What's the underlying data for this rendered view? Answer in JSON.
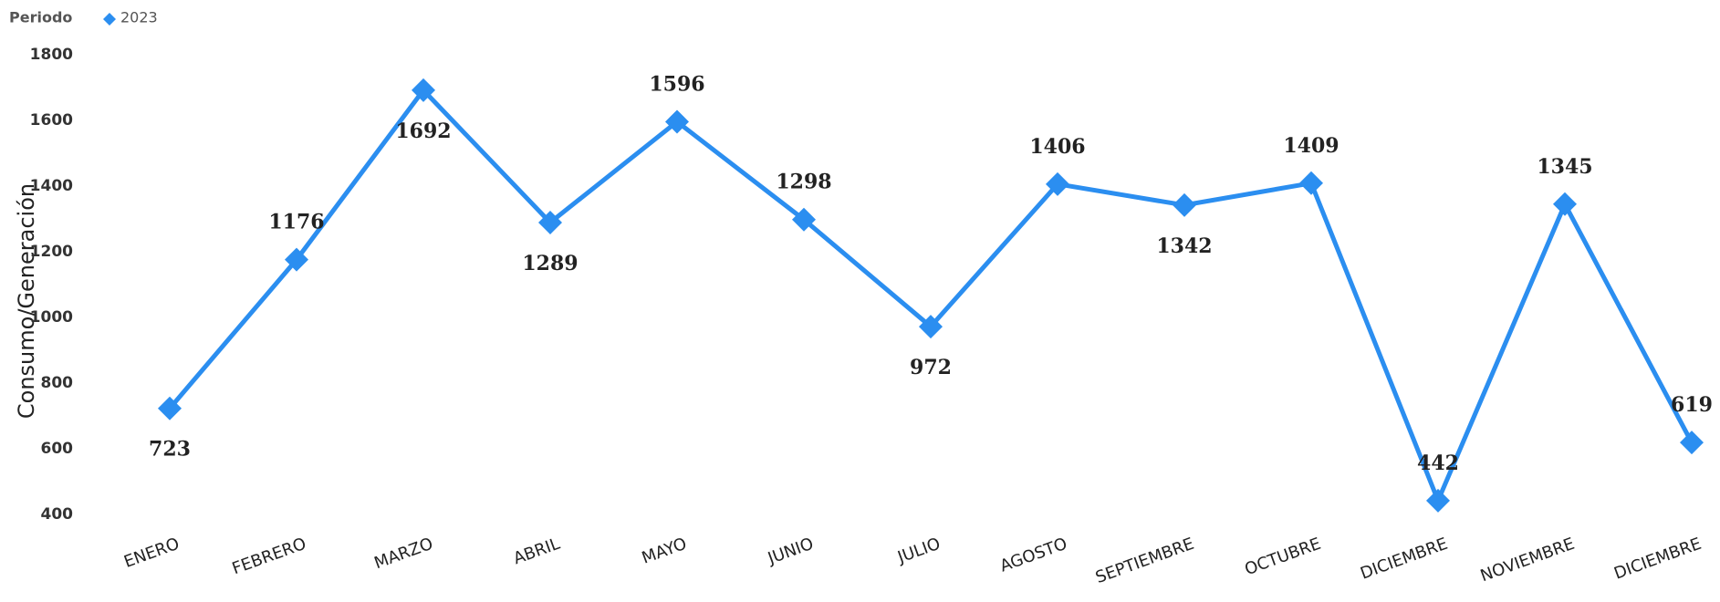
{
  "chart_data": {
    "type": "line",
    "legend_title": "Periodo",
    "y_label": "Consumo/Generación",
    "categories": [
      "ENERO",
      "FEBRERO",
      "MARZO",
      "ABRIL",
      "MAYO",
      "JUNIO",
      "JULIO",
      "AGOSTO",
      "SEPTIEMBRE",
      "OCTUBRE",
      "DICIEMBRE",
      "NOVIEMBRE",
      "DICIEMBRE"
    ],
    "series": [
      {
        "name": "2023",
        "color": "#2b8ef0",
        "values": [
          723,
          1176,
          1692,
          1289,
          1596,
          1298,
          972,
          1406,
          1342,
          1409,
          442,
          1345,
          619
        ]
      }
    ],
    "ylim": [
      400,
      1800
    ],
    "yticks": [
      400,
      600,
      800,
      1000,
      1200,
      1400,
      1600,
      1800
    ],
    "grid": false
  }
}
